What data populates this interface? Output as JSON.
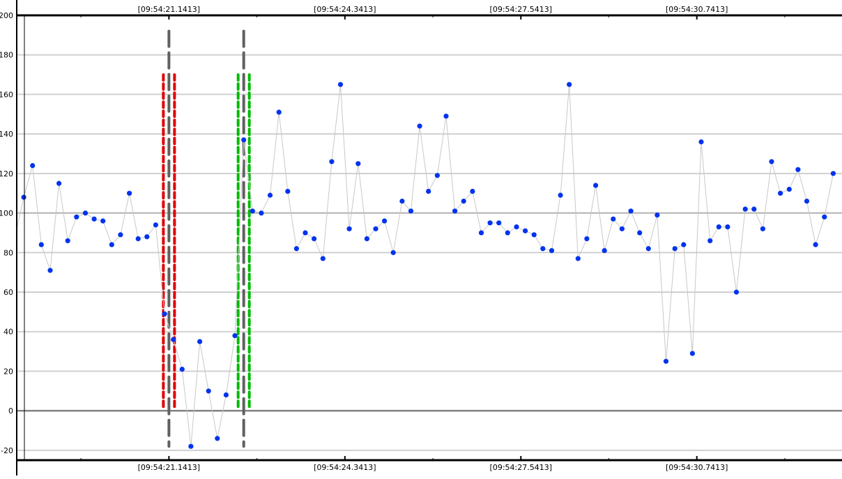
{
  "chart_data": {
    "type": "scatter",
    "title": "",
    "xlabel": "",
    "ylabel": "",
    "ylim": [
      -25,
      200
    ],
    "y_ticks": [
      -20,
      0,
      20,
      40,
      60,
      80,
      100,
      120,
      140,
      160,
      180,
      200
    ],
    "x_tick_labels": [
      "[09:54:21.1413]",
      "[09:54:24.3413]",
      "[09:54:27.5413]",
      "[09:54:30.7413]"
    ],
    "x_tick_index": [
      16.5,
      36.5,
      56.5,
      76.5
    ],
    "grid": true,
    "connect_points": true,
    "point_color": "#0033ee",
    "line_color": "#c8c8c8",
    "grid_color": "#d0d0d0",
    "zero_line_color": "#808080",
    "x_range_index": [
      -0.8,
      93
    ],
    "series": [
      {
        "values": [
          108,
          124,
          84,
          71,
          115,
          86,
          98,
          100,
          97,
          96,
          84,
          89,
          110,
          87,
          88,
          94,
          49,
          36,
          21,
          -18,
          35,
          10,
          -14,
          8,
          38,
          137,
          101,
          100,
          109,
          151,
          111,
          82,
          90,
          87,
          77,
          126,
          165,
          92,
          125,
          87,
          92,
          96,
          80,
          106,
          101,
          144,
          111,
          119,
          149,
          101,
          106,
          111,
          90,
          95,
          95,
          90,
          93,
          91,
          89,
          82,
          81,
          109,
          165,
          77,
          87,
          114,
          81,
          97,
          92,
          101,
          90,
          82,
          99,
          25,
          82,
          84,
          29,
          136,
          86,
          93,
          93,
          60,
          102,
          102,
          92,
          126,
          110,
          112,
          122,
          106,
          84,
          98,
          120
        ]
      }
    ],
    "markers": [
      {
        "color": "#e00000",
        "style": "dotted-double",
        "x_index": 16.5,
        "y_range": [
          2,
          170
        ]
      },
      {
        "color": "#00bb00",
        "style": "dotted-double",
        "x_index": 25.0,
        "y_range": [
          2,
          170
        ]
      },
      {
        "color": "#606060",
        "style": "dashed",
        "x_index": 16.5,
        "y_range": [
          -18,
          192
        ]
      },
      {
        "color": "#606060",
        "style": "dashed",
        "x_index": 25.0,
        "y_range": [
          -18,
          192
        ]
      }
    ]
  }
}
